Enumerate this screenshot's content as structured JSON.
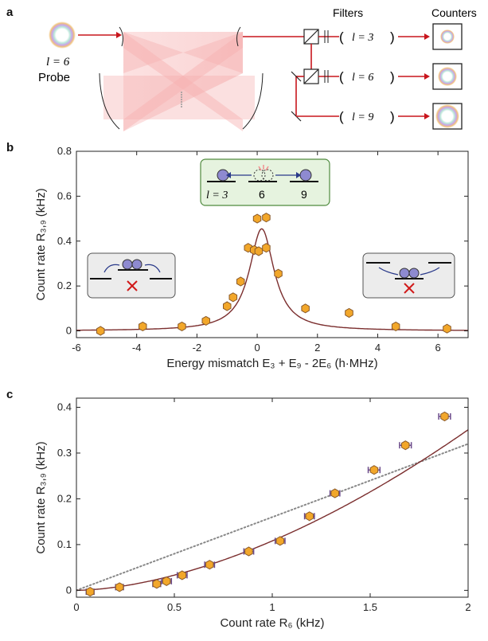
{
  "panel_labels": {
    "a": "a",
    "b": "b",
    "c": "c"
  },
  "panel_a": {
    "probe_l": "l = 6",
    "probe_label": "Probe",
    "filters_title": "Filters",
    "counters_title": "Counters",
    "filters": [
      "l = 3",
      "l = 6",
      "l = 9"
    ]
  },
  "panel_b": {
    "inset_top": {
      "labels": [
        "l = 3",
        "6",
        "9"
      ]
    }
  },
  "chart_data": [
    {
      "type": "scatter",
      "xlabel": "Energy mismatch E₃ + E₉ - 2E₆ (h·MHz)",
      "ylabel": "Count rate  R₃,₉ (kHz)",
      "xlim": [
        -6,
        7
      ],
      "ylim": [
        -0.03,
        0.8
      ],
      "xticks": [
        "-6",
        "-4",
        "-2",
        "0",
        "2",
        "4",
        "6"
      ],
      "yticks": [
        "0",
        "0.2",
        "0.4",
        "0.6",
        "0.8"
      ],
      "series": [
        {
          "x": [
            -5.2,
            -3.8,
            -2.5,
            -1.7,
            -1.0,
            -0.8,
            -0.55,
            -0.3,
            -0.1,
            0.0,
            0.3,
            0.05,
            0.3,
            0.7,
            1.6,
            3.05,
            4.6,
            6.3
          ],
          "y": [
            0.0,
            0.02,
            0.02,
            0.045,
            0.11,
            0.15,
            0.22,
            0.37,
            0.36,
            0.5,
            0.505,
            0.355,
            0.37,
            0.255,
            0.1,
            0.08,
            0.02,
            0.01
          ]
        }
      ],
      "fit_curve": {
        "type": "lorentzian",
        "center": 0.15,
        "amplitude": 0.455,
        "hwhm": 0.5,
        "offset": 0.0
      }
    },
    {
      "type": "scatter",
      "xlabel": "Count rate  R₆ (kHz)",
      "ylabel": "Count rate  R₃,₉ (kHz)",
      "xlim": [
        0,
        2
      ],
      "ylim": [
        -0.015,
        0.42
      ],
      "xticks": [
        "0",
        "0.5",
        "1",
        "1.5",
        "2"
      ],
      "yticks": [
        "0",
        "0.1",
        "0.2",
        "0.3",
        "0.4"
      ],
      "series": [
        {
          "x": [
            0.07,
            0.22,
            0.41,
            0.46,
            0.54,
            0.68,
            0.88,
            1.04,
            1.19,
            1.32,
            1.52,
            1.68,
            1.88
          ],
          "y": [
            -0.003,
            0.007,
            0.014,
            0.02,
            0.033,
            0.056,
            0.085,
            0.108,
            0.162,
            0.212,
            0.263,
            0.317,
            0.38
          ],
          "xerr": [
            0.02,
            0.02,
            0.02,
            0.025,
            0.025,
            0.025,
            0.025,
            0.025,
            0.025,
            0.025,
            0.03,
            0.03,
            0.03
          ]
        }
      ],
      "dotted_line": {
        "slope": 0.16,
        "intercept": 0.0
      },
      "fit_curve": {
        "type": "power",
        "coef": 0.108,
        "exponent": 1.7
      }
    }
  ],
  "colors": {
    "marker_fill": "#f2a72a",
    "marker_edge": "#8a5a2a",
    "fit": "#7b2e2e",
    "beam": "#c8161d",
    "cavity_light": "#f4a6a6",
    "inset_green_bg": "#e6f3df",
    "inset_green_edge": "#4f8a3e",
    "inset_gray_bg": "#ececec",
    "atom": "#8e8ad0",
    "cross": "#d11a1a"
  }
}
